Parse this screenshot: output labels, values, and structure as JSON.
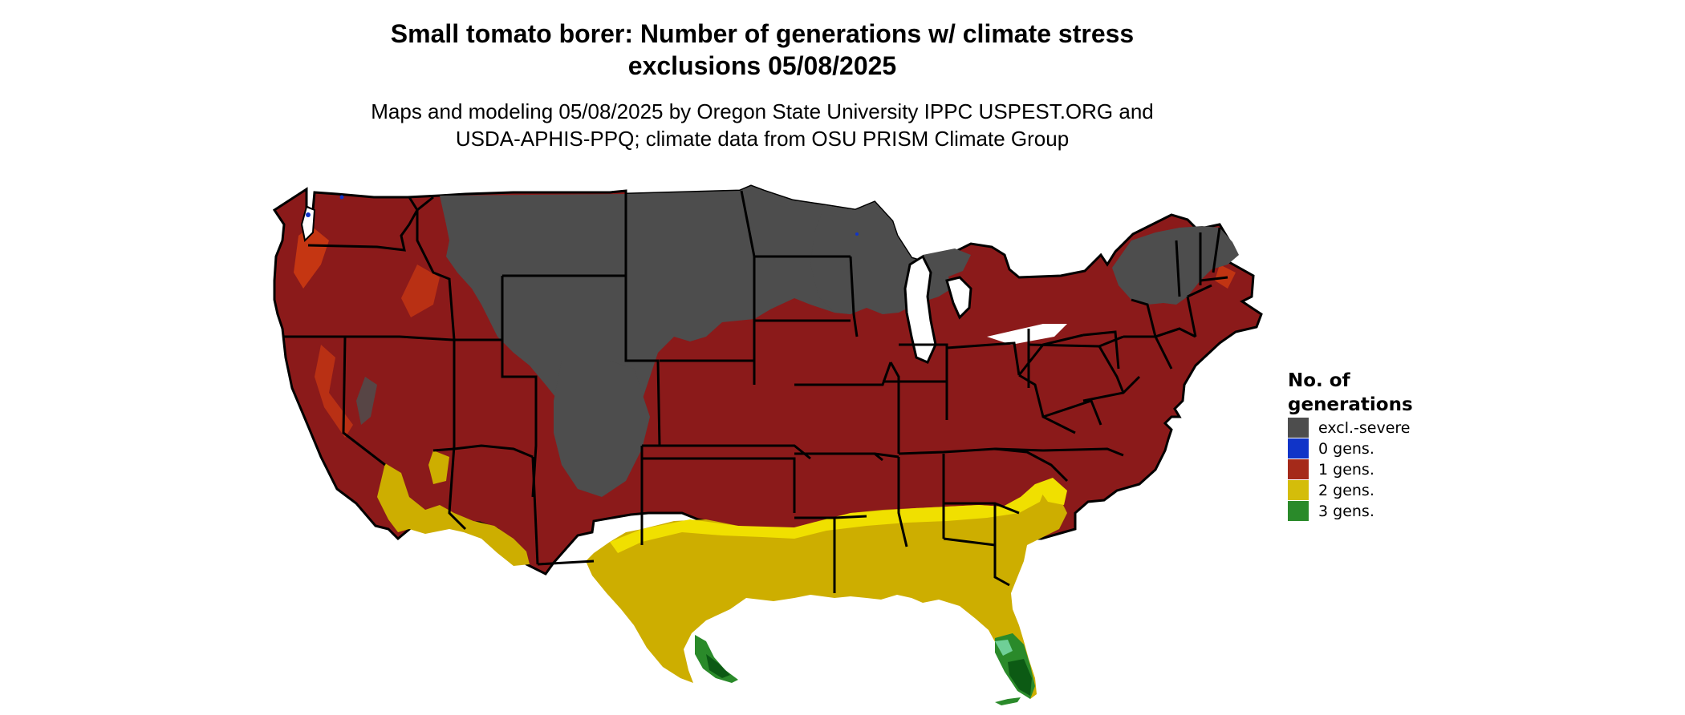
{
  "title_line1": "Small tomato borer: Number of generations w/ climate stress",
  "title_line2": "exclusions 05/08/2025",
  "subtitle_line1": "Maps and modeling 05/08/2025 by Oregon State University IPPC USPEST.ORG and",
  "subtitle_line2": "USDA-APHIS-PPQ; climate data from OSU PRISM Climate Group",
  "legend": {
    "title_line1": "No. of",
    "title_line2": "generations",
    "items": [
      {
        "label": "excl.-severe",
        "color": "#4d4d4d"
      },
      {
        "label": "0 gens.",
        "color": "#1034c8"
      },
      {
        "label": "1 gens.",
        "color": "#a52a1a"
      },
      {
        "label": "2 gens.",
        "color": "#d4bd0a"
      },
      {
        "label": "3 gens.",
        "color": "#2a8a2a"
      }
    ]
  },
  "colors": {
    "excluded": "#4d4d4d",
    "one_gen": "#8b1a1a",
    "one_gen_light": "#d84010",
    "two_gen": "#cdae00",
    "two_gen_bright": "#f0e000",
    "three_gen": "#2a8a2a",
    "three_gen_dark": "#0c5a14",
    "three_gen_light": "#6fcf97",
    "borders": "#000000"
  }
}
